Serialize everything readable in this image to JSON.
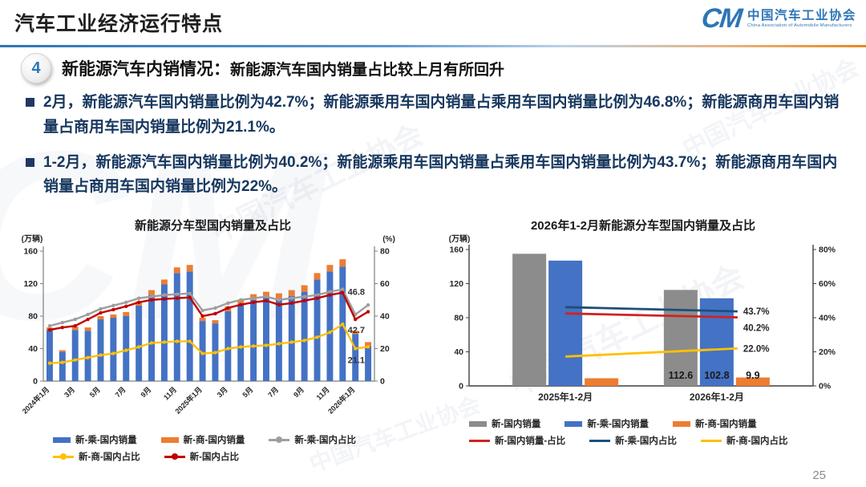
{
  "header": {
    "title": "汽车工业经济运行特点",
    "logo": {
      "mark": "CM",
      "org_cn": "中国汽车工业协会",
      "org_en": "China Association of Automobile Manufacturers"
    }
  },
  "section": {
    "number": "4",
    "heading_main": "新能源汽车内销情况：",
    "heading_sub": "新能源汽车国内销量占比较上月有所回升"
  },
  "bullets": [
    "2月，新能源汽车国内销量比例为42.7%；新能源乘用车国内销量占乘用车国内销量比例为46.8%；新能源商用车国内销量占商用车国内销量比例为21.1%。",
    "1-2月，新能源汽车国内销量比例为40.2%；新能源乘用车国内销量占乘用车国内销量比例为43.7%；新能源商用车国内销量占商用车国内销量比例为22%。"
  ],
  "watermark": {
    "text": "中国汽车工业协会",
    "mark": "CM"
  },
  "page_number": "25",
  "chart_data": [
    {
      "type": "bar",
      "subtype": "stacked-bar-line-combo",
      "title": "新能源分车型国内销量及占比",
      "left_axis_label": "(万辆)",
      "right_axis_label": "(%)",
      "left_ylim": [
        0,
        160
      ],
      "right_ylim": [
        0,
        80
      ],
      "left_ticks": [
        {
          "v": 0,
          "label": "0"
        },
        {
          "v": 40,
          "label": "40"
        },
        {
          "v": 80,
          "label": "80"
        },
        {
          "v": 120,
          "label": "120"
        },
        {
          "v": 160,
          "label": "160"
        }
      ],
      "right_ticks": [
        {
          "v": 0,
          "label": "0"
        },
        {
          "v": 20,
          "label": "20"
        },
        {
          "v": 40,
          "label": "40"
        },
        {
          "v": 60,
          "label": "60"
        },
        {
          "v": 80,
          "label": "80"
        }
      ],
      "categories": [
        "2024年1月",
        "2月",
        "3月",
        "4月",
        "5月",
        "6月",
        "7月",
        "8月",
        "9月",
        "10月",
        "11月",
        "12月",
        "2025年1月",
        "2月",
        "3月",
        "4月",
        "5月",
        "6月",
        "7月",
        "8月",
        "9月",
        "10月",
        "11月",
        "12月",
        "2026年1月",
        "2月"
      ],
      "tick_indices": [
        0,
        2,
        4,
        6,
        8,
        10,
        12,
        14,
        16,
        18,
        20,
        22,
        24
      ],
      "series": [
        {
          "name": "新-乘-国内销量",
          "type": "bar",
          "color": "#4472C4",
          "values": [
            63,
            36,
            63,
            62,
            76,
            78,
            80,
            93,
            106,
            119,
            133,
            135,
            74,
            71,
            86,
            94,
            100,
            103,
            101,
            105,
            110,
            125,
            135,
            141,
            58,
            43
          ]
        },
        {
          "name": "新-商-国内销量",
          "type": "bar",
          "color": "#ED7D31",
          "values": [
            3,
            2,
            4,
            4,
            4,
            4,
            5,
            5,
            6,
            6,
            7,
            8,
            4,
            4,
            6,
            6,
            7,
            7,
            7,
            7,
            8,
            8,
            8,
            9,
            4,
            5
          ]
        },
        {
          "name": "新-乘-国内占比",
          "type": "line",
          "color": "#9E9E9E",
          "values": [
            34,
            36,
            38,
            41,
            44.5,
            46.5,
            48.5,
            51,
            52,
            53,
            53.5,
            54,
            43.5,
            45,
            48,
            50,
            51,
            52,
            50,
            51,
            52,
            53,
            55,
            56.5,
            41,
            46.8
          ]
        },
        {
          "name": "新-商-国内占比",
          "type": "line",
          "color": "#FFC000",
          "values": [
            11,
            11.5,
            13,
            14.5,
            16,
            17,
            19,
            21,
            23.5,
            24,
            24.5,
            24.5,
            17,
            17.5,
            20,
            21,
            21.5,
            22,
            23,
            24,
            25,
            27,
            30,
            35,
            20,
            21.1
          ]
        },
        {
          "name": "新-国内占比",
          "type": "line",
          "color": "#C00000",
          "values": [
            31.5,
            33,
            34,
            38,
            42,
            44,
            46,
            48.5,
            50,
            50.5,
            51,
            51.5,
            40,
            41.5,
            45,
            47,
            48.5,
            49.5,
            47,
            48,
            49.5,
            51,
            53,
            54.5,
            38,
            42.7
          ]
        }
      ],
      "end_labels": [
        {
          "text": "46.8",
          "pct": 55
        },
        {
          "text": "42.7",
          "pct": 31.5
        },
        {
          "text": "21.1",
          "pct": 13
        }
      ],
      "legend_rows": [
        [
          {
            "name": "新-乘-国内销量",
            "color": "#4472C4",
            "marker": "bar"
          },
          {
            "name": "新-商-国内销量",
            "color": "#ED7D31",
            "marker": "bar"
          },
          {
            "name": "新-乘-国内占比",
            "color": "#9E9E9E",
            "marker": "line-dot"
          }
        ],
        [
          {
            "name": "新-商-国内占比",
            "color": "#FFC000",
            "marker": "line-dot"
          },
          {
            "name": "新-国内占比",
            "color": "#C00000",
            "marker": "line-dot"
          }
        ]
      ]
    },
    {
      "type": "bar",
      "subtype": "grouped-bar-line-combo",
      "title": "2026年1-2月新能源分车型国内销量及占比",
      "left_axis_label": "(万辆)",
      "left_ylim": [
        0,
        160
      ],
      "right_ylim": [
        0,
        80
      ],
      "left_ticks": [
        {
          "v": 0,
          "label": "0"
        },
        {
          "v": 40,
          "label": "40"
        },
        {
          "v": 80,
          "label": "80"
        },
        {
          "v": 120,
          "label": "120"
        },
        {
          "v": 160,
          "label": "160"
        }
      ],
      "right_ticks": [
        {
          "v": 0,
          "label": "0%"
        },
        {
          "v": 20,
          "label": "20%"
        },
        {
          "v": 40,
          "label": "40%"
        },
        {
          "v": 60,
          "label": "60%"
        },
        {
          "v": 80,
          "label": "80%"
        }
      ],
      "categories": [
        "2025年1-2月",
        "2026年1-2月"
      ],
      "bar_series": [
        {
          "name": "新-国内销量",
          "color": "#8C8C8C",
          "values": [
            155,
            112.6
          ],
          "bar_labels": [
            null,
            "112.6"
          ]
        },
        {
          "name": "新-乘-国内销量",
          "color": "#4472C4",
          "values": [
            147,
            102.8
          ],
          "bar_labels": [
            null,
            "102.8"
          ]
        },
        {
          "name": "新-商-国内销量",
          "color": "#ED7D31",
          "values": [
            9,
            9.9
          ],
          "bar_labels": [
            null,
            "9.9"
          ]
        }
      ],
      "line_series": [
        {
          "name": "新-商-国内占比",
          "color": "#FFC000",
          "values": [
            17.2,
            22
          ],
          "end_label": "22.0%",
          "label_dy": 0
        },
        {
          "name": "新-国内销量-占比",
          "color": "#D02222",
          "values": [
            42.5,
            40.2
          ],
          "end_label": "40.2%",
          "label_dy": 13
        },
        {
          "name": "新-乘-国内占比",
          "color": "#1F4E79",
          "values": [
            46.2,
            43.7
          ],
          "end_label": "43.7%",
          "label_dy": 0
        }
      ],
      "legend_rows": [
        [
          {
            "name": "新-国内销量",
            "color": "#8C8C8C",
            "marker": "bar"
          },
          {
            "name": "新-乘-国内销量",
            "color": "#4472C4",
            "marker": "bar"
          },
          {
            "name": "新-商-国内销量",
            "color": "#ED7D31",
            "marker": "bar"
          }
        ],
        [
          {
            "name": "新-国内销量-占比",
            "color": "#D02222",
            "marker": "line"
          },
          {
            "name": "新-乘-国内占比",
            "color": "#1F4E79",
            "marker": "line"
          },
          {
            "name": "新-商-国内占比",
            "color": "#FFC000",
            "marker": "line"
          }
        ]
      ]
    }
  ]
}
